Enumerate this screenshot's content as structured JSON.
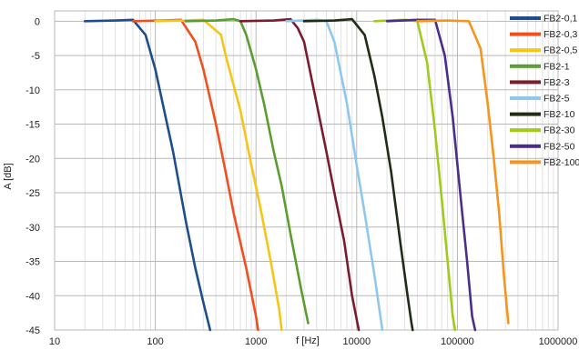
{
  "chart_data": {
    "type": "line",
    "title": "",
    "xlabel": "f [Hz]",
    "ylabel": "A [dB]",
    "x_scale": "log",
    "xlim": [
      10,
      1000000
    ],
    "ylim": [
      -45,
      1.5
    ],
    "x_ticks": [
      10,
      100,
      1000,
      10000,
      100000,
      1000000
    ],
    "x_tick_labels": [
      "10",
      "100",
      "1000",
      "10000",
      "100000",
      "1000000"
    ],
    "y_ticks": [
      0,
      -5,
      -10,
      -15,
      -20,
      -25,
      -30,
      -35,
      -40,
      -45
    ],
    "y_tick_labels": [
      "0",
      "-5",
      "-10",
      "-15",
      "-20",
      "-25",
      "-30",
      "-35",
      "-40",
      "-45"
    ],
    "grid": true,
    "legend_position": "right",
    "series": [
      {
        "name": "FB2-0,1",
        "color": "#1f4e8c",
        "x": [
          20,
          40,
          60,
          80,
          100,
          150,
          200,
          250,
          300,
          350
        ],
        "y": [
          0,
          0.1,
          0.2,
          -2,
          -7,
          -19,
          -29,
          -36,
          -41,
          -45
        ]
      },
      {
        "name": "FB2-0,3",
        "color": "#f0501e",
        "x": [
          60,
          120,
          180,
          250,
          300,
          400,
          500,
          600,
          800,
          1000,
          1050
        ],
        "y": [
          0,
          0.1,
          0.2,
          -3,
          -7,
          -15,
          -22,
          -28,
          -36,
          -43,
          -45
        ]
      },
      {
        "name": "FB2-0,5",
        "color": "#f5c518",
        "x": [
          100,
          200,
          300,
          450,
          500,
          700,
          900,
          1100,
          1400,
          1700,
          1800
        ],
        "y": [
          0,
          0.1,
          0.2,
          -2,
          -5,
          -13,
          -21,
          -27,
          -35,
          -42,
          -45
        ]
      },
      {
        "name": "FB2-1",
        "color": "#5a9e2f",
        "x": [
          200,
          400,
          600,
          700,
          800,
          1000,
          1200,
          1500,
          1800,
          2200,
          2800,
          3300
        ],
        "y": [
          0,
          0.1,
          0.3,
          0,
          -2,
          -7,
          -12,
          -19,
          -24,
          -31,
          -39,
          -44
        ]
      },
      {
        "name": "FB2-3",
        "color": "#7b1c2e",
        "x": [
          700,
          1500,
          2200,
          2600,
          3000,
          4000,
          5000,
          6000,
          7500,
          9000,
          10500
        ],
        "y": [
          0,
          0.1,
          0.3,
          -1,
          -3,
          -12,
          -19,
          -25,
          -32,
          -40,
          -45
        ]
      },
      {
        "name": "FB2-5",
        "color": "#8ec8ef",
        "x": [
          2000,
          4000,
          5000,
          6000,
          8000,
          10000,
          12000,
          15000,
          18000
        ],
        "y": [
          0,
          0.2,
          0,
          -3,
          -12,
          -21,
          -28,
          -37,
          -45
        ]
      },
      {
        "name": "FB2-10",
        "color": "#1f2d16",
        "x": [
          3000,
          6000,
          9000,
          12000,
          15000,
          18000,
          22000,
          27000,
          32000,
          35000,
          36000
        ],
        "y": [
          0,
          0.1,
          0.3,
          -2,
          -8,
          -14,
          -22,
          -32,
          -40,
          -44,
          -45
        ]
      },
      {
        "name": "FB2-30",
        "color": "#9fcb1c",
        "x": [
          15000,
          30000,
          40000,
          50000,
          60000,
          70000,
          80000,
          90000,
          95000
        ],
        "y": [
          0,
          0.2,
          0,
          -6,
          -16,
          -26,
          -35,
          -43,
          -45
        ]
      },
      {
        "name": "FB2-50",
        "color": "#4a2e8a",
        "x": [
          20000,
          40000,
          60000,
          75000,
          90000,
          110000,
          125000,
          140000,
          150000
        ],
        "y": [
          0,
          0.2,
          0.2,
          -5,
          -14,
          -27,
          -35,
          -43,
          -45
        ]
      },
      {
        "name": "FB2-100",
        "color": "#f7941d",
        "x": [
          40000,
          80000,
          130000,
          170000,
          200000,
          230000,
          260000,
          290000,
          320000
        ],
        "y": [
          0,
          0.1,
          0,
          -4,
          -12,
          -20,
          -28,
          -37,
          -44
        ]
      }
    ]
  }
}
